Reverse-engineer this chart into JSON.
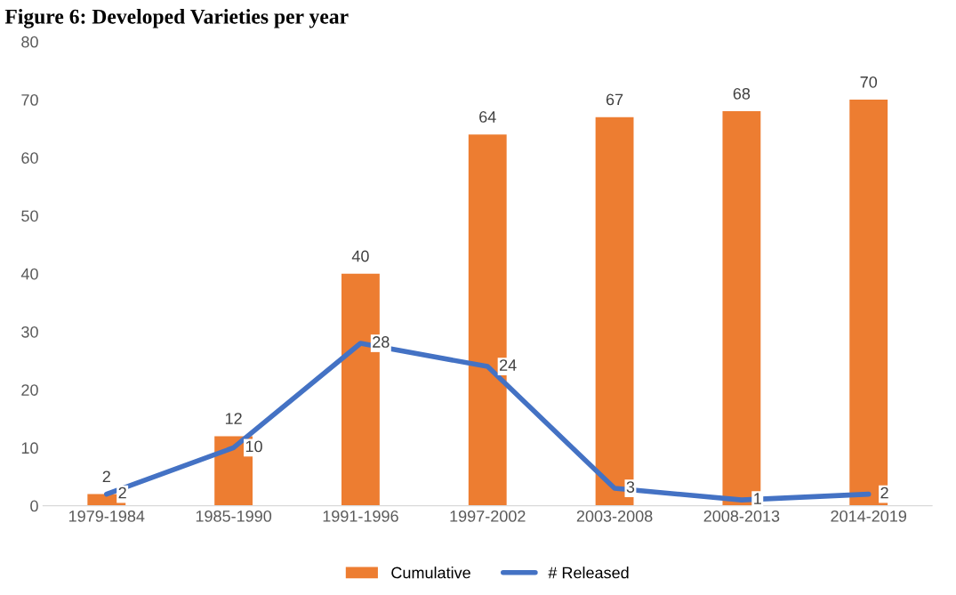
{
  "chart_data": {
    "type": "bar",
    "title": "Figure 6: Developed Varieties per year",
    "categories": [
      "1979-1984",
      "1985-1990",
      "1991-1996",
      "1997-2002",
      "2003-2008",
      "2008-2013",
      "2014-2019"
    ],
    "series": [
      {
        "name": "Cumulative",
        "color": "#ed7d31",
        "values": [
          2,
          12,
          40,
          64,
          67,
          68,
          70
        ]
      },
      {
        "name": "# Released",
        "color": "#4472c4",
        "type": "line",
        "values": [
          2,
          10,
          28,
          24,
          3,
          1,
          2
        ]
      }
    ],
    "ylim": [
      0,
      80
    ],
    "yticks": [
      0,
      10,
      20,
      30,
      40,
      50,
      60,
      70,
      80
    ],
    "grid": false,
    "legend": "bottom",
    "data_labels": true,
    "marker": "none",
    "line_style": "solid"
  }
}
